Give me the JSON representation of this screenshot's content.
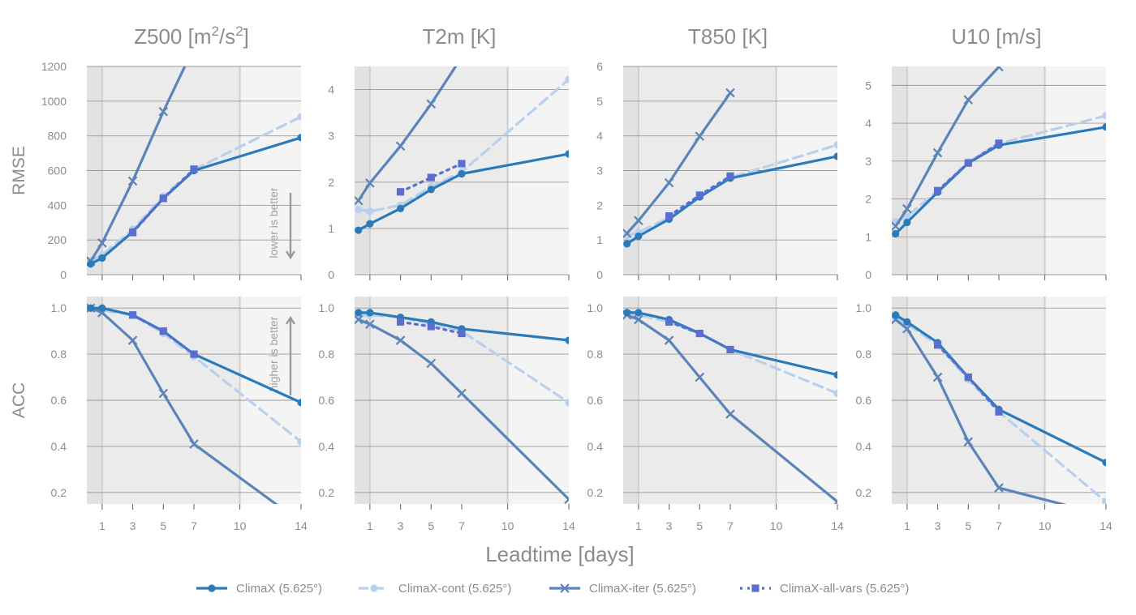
{
  "chart_data": {
    "type": "line",
    "xlabel": "Leadtime [days]",
    "x_ticks": [
      1,
      3,
      5,
      7,
      10,
      14
    ],
    "x_range": [
      0,
      14
    ],
    "shaded_bands": [
      [
        0.25,
        1
      ],
      [
        1,
        10
      ],
      [
        10,
        14
      ]
    ],
    "rows": [
      {
        "label": "RMSE",
        "annotation": "lower is better"
      },
      {
        "label": "ACC",
        "annotation": "higher is better"
      }
    ],
    "series_styles": [
      {
        "name": "ClimaX (5.625°)",
        "color": "#2b7bba",
        "marker": "circle",
        "dash": "solid"
      },
      {
        "name": "ClimaX-cont (5.625°)",
        "color": "#b8d0ec",
        "marker": "circle",
        "dash": "dashed"
      },
      {
        "name": "ClimaX-iter (5.625°)",
        "color": "#5b84b8",
        "marker": "x",
        "dash": "solid"
      },
      {
        "name": "ClimaX-all-vars (5.625°)",
        "color": "#5a6ed0",
        "marker": "square",
        "dash": "dotted"
      }
    ],
    "panels": [
      {
        "title": "Z500 [m²/s²]",
        "title_main": "Z500 [m",
        "title_sup": "2",
        "title_mid": "/s",
        "title_sup2": "2",
        "title_end": "]",
        "row": 0,
        "col": 0,
        "ylim": [
          0,
          1200
        ],
        "yticks": [
          0,
          200,
          400,
          600,
          800,
          1000,
          1200
        ],
        "tick_labels": [
          "0",
          "200",
          "400",
          "600",
          "800",
          "1000",
          "1200"
        ],
        "show_annotation": true,
        "series": [
          {
            "name": "ClimaX (5.625°)",
            "x": [
              0.25,
              1,
              3,
              5,
              7,
              14
            ],
            "y": [
              62,
              96,
              247,
              440,
              600,
              790
            ]
          },
          {
            "name": "ClimaX-cont (5.625°)",
            "x": [
              0.25,
              1,
              3,
              5,
              7,
              14
            ],
            "y": [
              82,
              113,
              262,
              452,
              606,
              910
            ]
          },
          {
            "name": "ClimaX-iter (5.625°)",
            "x": [
              0.25,
              1,
              3,
              5,
              7
            ],
            "y": [
              78,
              183,
              540,
              940,
              1310
            ]
          },
          {
            "name": "ClimaX-all-vars (5.625°)",
            "x": [
              3,
              5,
              7
            ],
            "y": [
              243,
              440,
              608
            ]
          }
        ]
      },
      {
        "title": "T2m [K]",
        "row": 0,
        "col": 1,
        "ylim": [
          0,
          4.5
        ],
        "yticks": [
          0,
          1,
          2,
          3,
          4
        ],
        "tick_labels": [
          "0",
          "1",
          "2",
          "3",
          "4"
        ],
        "show_annotation": false,
        "series": [
          {
            "name": "ClimaX (5.625°)",
            "x": [
              0.25,
              1,
              3,
              5,
              7,
              14
            ],
            "y": [
              0.96,
              1.1,
              1.43,
              1.84,
              2.18,
              2.61
            ]
          },
          {
            "name": "ClimaX-cont (5.625°)",
            "x": [
              0.25,
              1,
              3,
              5,
              7,
              14
            ],
            "y": [
              1.41,
              1.37,
              1.5,
              1.9,
              2.22,
              4.22
            ]
          },
          {
            "name": "ClimaX-iter (5.625°)",
            "x": [
              0.25,
              1,
              3,
              5,
              7
            ],
            "y": [
              1.6,
              1.98,
              2.78,
              3.69,
              4.7
            ]
          },
          {
            "name": "ClimaX-all-vars (5.625°)",
            "x": [
              3,
              5,
              7
            ],
            "y": [
              1.79,
              2.1,
              2.4
            ]
          }
        ]
      },
      {
        "title": "T850 [K]",
        "row": 0,
        "col": 2,
        "ylim": [
          0,
          6
        ],
        "yticks": [
          0,
          1,
          2,
          3,
          4,
          5,
          6
        ],
        "tick_labels": [
          "0",
          "1",
          "2",
          "3",
          "4",
          "5",
          "6"
        ],
        "show_annotation": false,
        "series": [
          {
            "name": "ClimaX (5.625°)",
            "x": [
              0.25,
              1,
              3,
              5,
              7,
              14
            ],
            "y": [
              0.89,
              1.11,
              1.6,
              2.24,
              2.78,
              3.41
            ]
          },
          {
            "name": "ClimaX-cont (5.625°)",
            "x": [
              0.25,
              1,
              3,
              5,
              7,
              14
            ],
            "y": [
              1.12,
              1.22,
              1.65,
              2.25,
              2.8,
              3.74
            ]
          },
          {
            "name": "ClimaX-iter (5.625°)",
            "x": [
              0.25,
              1,
              3,
              5,
              7
            ],
            "y": [
              1.19,
              1.56,
              2.65,
              3.99,
              5.24
            ]
          },
          {
            "name": "ClimaX-all-vars (5.625°)",
            "x": [
              3,
              5,
              7
            ],
            "y": [
              1.69,
              2.29,
              2.84
            ]
          }
        ]
      },
      {
        "title": "U10 [m/s]",
        "row": 0,
        "col": 3,
        "ylim": [
          0,
          5.5
        ],
        "yticks": [
          0,
          1,
          2,
          3,
          4,
          5
        ],
        "tick_labels": [
          "0",
          "1",
          "2",
          "3",
          "4",
          "5"
        ],
        "show_annotation": false,
        "series": [
          {
            "name": "ClimaX (5.625°)",
            "x": [
              0.25,
              1,
              3,
              5,
              7,
              14
            ],
            "y": [
              1.08,
              1.38,
              2.18,
              2.95,
              3.42,
              3.9
            ]
          },
          {
            "name": "ClimaX-cont (5.625°)",
            "x": [
              0.25,
              1,
              3,
              5,
              7,
              14
            ],
            "y": [
              1.4,
              1.54,
              2.22,
              2.98,
              3.46,
              4.2
            ]
          },
          {
            "name": "ClimaX-iter (5.625°)",
            "x": [
              0.25,
              1,
              3,
              5,
              7
            ],
            "y": [
              1.28,
              1.74,
              3.22,
              4.62,
              5.49
            ]
          },
          {
            "name": "ClimaX-all-vars (5.625°)",
            "x": [
              3,
              5,
              7
            ],
            "y": [
              2.22,
              2.95,
              3.47
            ]
          }
        ]
      },
      {
        "title": "",
        "row": 1,
        "col": 0,
        "ylim": [
          0.15,
          1.05
        ],
        "yticks": [
          0.2,
          0.4,
          0.6,
          0.8,
          1.0
        ],
        "tick_labels": [
          "0.2",
          "0.4",
          "0.6",
          "0.8",
          "1.0"
        ],
        "show_annotation": true,
        "series": [
          {
            "name": "ClimaX (5.625°)",
            "x": [
              0.25,
              1,
              3,
              5,
              7,
              14
            ],
            "y": [
              1.0,
              1.0,
              0.97,
              0.9,
              0.8,
              0.59
            ]
          },
          {
            "name": "ClimaX-cont (5.625°)",
            "x": [
              0.25,
              1,
              3,
              5,
              7,
              14
            ],
            "y": [
              1.0,
              0.99,
              0.97,
              0.89,
              0.79,
              0.42
            ]
          },
          {
            "name": "ClimaX-iter (5.625°)",
            "x": [
              0.25,
              1,
              3,
              5,
              7,
              14
            ],
            "y": [
              1.0,
              0.98,
              0.86,
              0.63,
              0.41,
              0.07
            ]
          },
          {
            "name": "ClimaX-all-vars (5.625°)",
            "x": [
              3,
              5,
              7
            ],
            "y": [
              0.97,
              0.9,
              0.8
            ]
          }
        ]
      },
      {
        "title": "",
        "row": 1,
        "col": 1,
        "ylim": [
          0.15,
          1.05
        ],
        "yticks": [
          0.2,
          0.4,
          0.6,
          0.8,
          1.0
        ],
        "tick_labels": [
          "0.2",
          "0.4",
          "0.6",
          "0.8",
          "1.0"
        ],
        "show_annotation": false,
        "series": [
          {
            "name": "ClimaX (5.625°)",
            "x": [
              0.25,
              1,
              3,
              5,
              7,
              14
            ],
            "y": [
              0.98,
              0.98,
              0.96,
              0.94,
              0.91,
              0.86
            ]
          },
          {
            "name": "ClimaX-cont (5.625°)",
            "x": [
              0.25,
              1,
              3,
              5,
              7,
              14
            ],
            "y": [
              0.97,
              0.97,
              0.96,
              0.93,
              0.9,
              0.59
            ]
          },
          {
            "name": "ClimaX-iter (5.625°)",
            "x": [
              0.25,
              1,
              3,
              5,
              7,
              14
            ],
            "y": [
              0.95,
              0.93,
              0.86,
              0.76,
              0.63,
              0.17
            ]
          },
          {
            "name": "ClimaX-all-vars (5.625°)",
            "x": [
              3,
              5,
              7
            ],
            "y": [
              0.94,
              0.92,
              0.89
            ]
          }
        ]
      },
      {
        "title": "",
        "row": 1,
        "col": 2,
        "ylim": [
          0.15,
          1.05
        ],
        "yticks": [
          0.2,
          0.4,
          0.6,
          0.8,
          1.0
        ],
        "tick_labels": [
          "0.2",
          "0.4",
          "0.6",
          "0.8",
          "1.0"
        ],
        "show_annotation": false,
        "series": [
          {
            "name": "ClimaX (5.625°)",
            "x": [
              0.25,
              1,
              3,
              5,
              7,
              14
            ],
            "y": [
              0.98,
              0.98,
              0.95,
              0.89,
              0.82,
              0.71
            ]
          },
          {
            "name": "ClimaX-cont (5.625°)",
            "x": [
              0.25,
              1,
              3,
              5,
              7,
              14
            ],
            "y": [
              0.98,
              0.97,
              0.94,
              0.89,
              0.82,
              0.63
            ]
          },
          {
            "name": "ClimaX-iter (5.625°)",
            "x": [
              0.25,
              1,
              3,
              5,
              7,
              14
            ],
            "y": [
              0.97,
              0.95,
              0.86,
              0.7,
              0.54,
              0.16
            ]
          },
          {
            "name": "ClimaX-all-vars (5.625°)",
            "x": [
              3,
              5,
              7
            ],
            "y": [
              0.94,
              0.89,
              0.82
            ]
          }
        ]
      },
      {
        "title": "",
        "row": 1,
        "col": 3,
        "ylim": [
          0.15,
          1.05
        ],
        "yticks": [
          0.2,
          0.4,
          0.6,
          0.8,
          1.0
        ],
        "tick_labels": [
          "0.2",
          "0.4",
          "0.6",
          "0.8",
          "1.0"
        ],
        "show_annotation": false,
        "series": [
          {
            "name": "ClimaX (5.625°)",
            "x": [
              0.25,
              1,
              3,
              5,
              7,
              14
            ],
            "y": [
              0.97,
              0.94,
              0.85,
              0.7,
              0.56,
              0.33
            ]
          },
          {
            "name": "ClimaX-cont (5.625°)",
            "x": [
              0.25,
              1,
              3,
              5,
              7,
              14
            ],
            "y": [
              0.96,
              0.93,
              0.84,
              0.69,
              0.55,
              0.16
            ]
          },
          {
            "name": "ClimaX-iter (5.625°)",
            "x": [
              0.25,
              1,
              3,
              5,
              7,
              14
            ],
            "y": [
              0.95,
              0.91,
              0.7,
              0.42,
              0.22,
              0.1
            ]
          },
          {
            "name": "ClimaX-all-vars (5.625°)",
            "x": [
              3,
              5,
              7
            ],
            "y": [
              0.84,
              0.7,
              0.55
            ]
          }
        ]
      }
    ]
  }
}
